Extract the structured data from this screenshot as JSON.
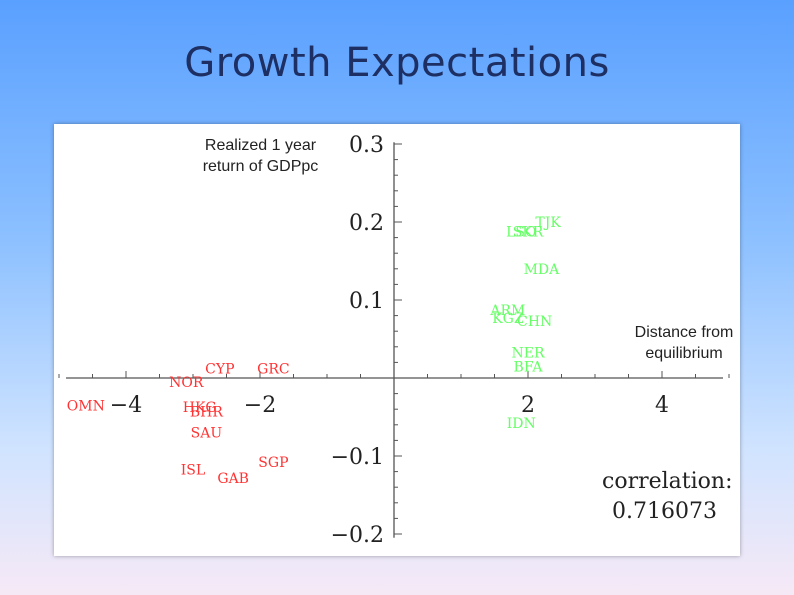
{
  "slide": {
    "title": "Growth Expectations"
  },
  "chart_data": {
    "type": "scatter",
    "xlabel": "Distance from\nequilibrium",
    "ylabel": "Realized 1 year\nreturn of GDPpc",
    "xlim": [
      -5,
      5
    ],
    "ylim": [
      -0.21,
      0.31
    ],
    "x_ticks": [
      -4,
      -2,
      2,
      4
    ],
    "x_tick_labels": [
      "−4",
      "−2",
      "2",
      "4"
    ],
    "y_ticks": [
      0.3,
      0.2,
      0.1,
      -0.1,
      -0.2
    ],
    "y_tick_labels": [
      "0.3",
      "0.2",
      "0.1",
      "−0.1",
      "−0.2"
    ],
    "grid": false,
    "annotation": {
      "line1": "correlation:",
      "line2": "0.716073"
    },
    "colors": {
      "positive": "#66ff66",
      "negative": "#ff3333",
      "axis": "#555555",
      "text": "#222222"
    },
    "series": [
      {
        "color": "#66ff66",
        "points": [
          {
            "label": "TJK",
            "x": 2.3,
            "y": 0.2
          },
          {
            "label": "LSO",
            "x": 1.9,
            "y": 0.188
          },
          {
            "label": "SKR",
            "x": 2.0,
            "y": 0.188
          },
          {
            "label": "MDA",
            "x": 2.2,
            "y": 0.14
          },
          {
            "label": "ARM",
            "x": 1.7,
            "y": 0.087
          },
          {
            "label": "KGZ",
            "x": 1.7,
            "y": 0.077
          },
          {
            "label": "CHN",
            "x": 2.1,
            "y": 0.073
          },
          {
            "label": "NER",
            "x": 2.0,
            "y": 0.033
          },
          {
            "label": "BFA",
            "x": 2.0,
            "y": 0.015
          },
          {
            "label": "IDN",
            "x": 1.9,
            "y": -0.058
          }
        ]
      },
      {
        "color": "#ff3333",
        "points": [
          {
            "label": "CYP",
            "x": -2.6,
            "y": 0.012
          },
          {
            "label": "GRC",
            "x": -1.8,
            "y": 0.012
          },
          {
            "label": "NOR",
            "x": -3.1,
            "y": -0.005
          },
          {
            "label": "OMN",
            "x": -4.6,
            "y": -0.035
          },
          {
            "label": "HKG",
            "x": -2.9,
            "y": -0.037
          },
          {
            "label": "BHR",
            "x": -2.8,
            "y": -0.043
          },
          {
            "label": "SAU",
            "x": -2.8,
            "y": -0.07
          },
          {
            "label": "SGP",
            "x": -1.8,
            "y": -0.108
          },
          {
            "label": "ISL",
            "x": -3.0,
            "y": -0.117
          },
          {
            "label": "GAB",
            "x": -2.4,
            "y": -0.128
          }
        ]
      }
    ]
  }
}
